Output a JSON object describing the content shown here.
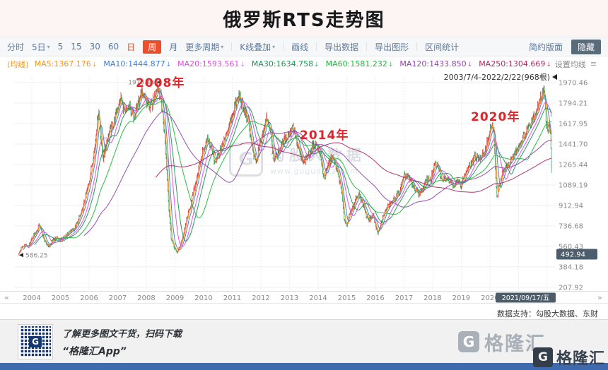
{
  "page": {
    "title": "俄罗斯RTS走势图"
  },
  "colors": {
    "up": "#dc3a3a",
    "down": "#2fa054",
    "annotation": "#e0262b",
    "selected_bg": "#e8502e",
    "badge_bg": "#4d5d6c",
    "bottom_bar": "#3f6aae"
  },
  "toolbar": {
    "caret": "▾",
    "items": [
      {
        "label": "分时"
      },
      {
        "label": "5日",
        "caret": true
      },
      {
        "label": "5"
      },
      {
        "label": "15"
      },
      {
        "label": "30"
      },
      {
        "label": "60"
      },
      {
        "label": "日",
        "accent": true
      },
      {
        "label": "周",
        "selected": true
      },
      {
        "label": "月"
      },
      {
        "label": "更多周期",
        "caret": true
      },
      {
        "sep": true
      },
      {
        "label": "K线叠加",
        "caret": true
      },
      {
        "sep": true
      },
      {
        "label": "画线"
      },
      {
        "sep": true
      },
      {
        "label": "导出数据"
      },
      {
        "sep": true
      },
      {
        "label": "导出图形"
      },
      {
        "sep": true
      },
      {
        "label": "区间统计"
      }
    ],
    "right": [
      {
        "label": "简约版面"
      },
      {
        "label": "隐藏",
        "dark": true
      }
    ]
  },
  "ma_bar": {
    "prefix": "(均线)",
    "prefix_color": "#f7941d",
    "arrow": "↓",
    "items": [
      {
        "label": "MA5:1367.176",
        "color": "#f7941d"
      },
      {
        "label": "MA10:1444.877",
        "color": "#3d7bd6"
      },
      {
        "label": "MA20:1593.561",
        "color": "#df4ddf"
      },
      {
        "label": "MA30:1634.758",
        "color": "#169a50"
      },
      {
        "label": "MA60:1581.232",
        "color": "#1fb93b"
      },
      {
        "label": "MA120:1433.850",
        "color": "#8f44ad"
      },
      {
        "label": "MA250:1304.669",
        "color": "#aa2d66"
      }
    ],
    "settings": "设置均线",
    "settings_icon": "≡"
  },
  "chart": {
    "range_label": "2003/7/4-2022/2/22(968根)",
    "y_axis": [
      "1970.46",
      "1794.21",
      "1617.95",
      "1441.70",
      "1265.44",
      "1089.19",
      "912.94",
      "736.68",
      "560.43",
      "384.18",
      "207.92"
    ],
    "price_badge": "492.94",
    "x_axis": [
      "2004",
      "2005",
      "2006",
      "2007",
      "2008",
      "2009",
      "2010",
      "2011",
      "2012",
      "2013",
      "2014",
      "2015",
      "2016",
      "2017",
      "2018",
      "2019",
      "2020"
    ],
    "date_badge": "2021/09/17/五",
    "nav_left": "«",
    "nav_right": "»",
    "annotations": [
      {
        "text": "2008年"
      },
      {
        "text": "2014年"
      },
      {
        "text": "2020年"
      }
    ],
    "markers": {
      "start": "586.25",
      "peak": "1970.46"
    },
    "watermark": {
      "logo": "G",
      "name": "勾股大数据",
      "url": "www.gogudata.com"
    },
    "support": "数据支持：勾股大数据、东财"
  },
  "chart_data": {
    "type": "candlestick",
    "title": "俄罗斯RTS走势图",
    "bars": 968,
    "x_range": [
      2003.53,
      2022.15
    ],
    "ylim": [
      177,
      2025
    ],
    "y_ticks": [
      1970.46,
      1794.21,
      1617.95,
      1441.7,
      1265.44,
      1089.19,
      912.94,
      736.68,
      560.43,
      384.18,
      207.92
    ],
    "ma_periods": [
      5,
      10,
      20,
      30,
      60,
      120,
      250
    ],
    "ma_colors": {
      "MA5": "#f7941d",
      "MA10": "#3d7bd6",
      "MA20": "#df4ddf",
      "MA30": "#169a50",
      "MA60": "#1fb93b",
      "MA120": "#8f44ad",
      "MA250": "#aa2d66"
    },
    "anchors": [
      [
        2003.53,
        490
      ],
      [
        2003.62,
        540
      ],
      [
        2003.75,
        575
      ],
      [
        2003.88,
        555
      ],
      [
        2004.0,
        625
      ],
      [
        2004.15,
        685
      ],
      [
        2004.27,
        755
      ],
      [
        2004.38,
        645
      ],
      [
        2004.5,
        580
      ],
      [
        2004.62,
        560
      ],
      [
        2004.75,
        615
      ],
      [
        2004.88,
        640
      ],
      [
        2005.0,
        608
      ],
      [
        2005.15,
        648
      ],
      [
        2005.3,
        680
      ],
      [
        2005.45,
        705
      ],
      [
        2005.6,
        765
      ],
      [
        2005.75,
        865
      ],
      [
        2005.9,
        1005
      ],
      [
        2006.05,
        1185
      ],
      [
        2006.2,
        1430
      ],
      [
        2006.33,
        1745
      ],
      [
        2006.42,
        1455
      ],
      [
        2006.5,
        1315
      ],
      [
        2006.62,
        1485
      ],
      [
        2006.75,
        1565
      ],
      [
        2006.88,
        1645
      ],
      [
        2007.0,
        1755
      ],
      [
        2007.12,
        1835
      ],
      [
        2007.25,
        1705
      ],
      [
        2007.4,
        1765
      ],
      [
        2007.55,
        1695
      ],
      [
        2007.7,
        1785
      ],
      [
        2007.85,
        1875
      ],
      [
        2008.0,
        1825
      ],
      [
        2008.12,
        1745
      ],
      [
        2008.25,
        1825
      ],
      [
        2008.38,
        1955
      ],
      [
        2008.5,
        1845
      ],
      [
        2008.6,
        1625
      ],
      [
        2008.7,
        1285
      ],
      [
        2008.78,
        905
      ],
      [
        2008.86,
        645
      ],
      [
        2008.95,
        565
      ],
      [
        2009.05,
        505
      ],
      [
        2009.15,
        545
      ],
      [
        2009.28,
        645
      ],
      [
        2009.4,
        785
      ],
      [
        2009.55,
        925
      ],
      [
        2009.7,
        1085
      ],
      [
        2009.85,
        1245
      ],
      [
        2010.0,
        1405
      ],
      [
        2010.12,
        1485
      ],
      [
        2010.25,
        1435
      ],
      [
        2010.38,
        1285
      ],
      [
        2010.5,
        1345
      ],
      [
        2010.65,
        1405
      ],
      [
        2010.8,
        1525
      ],
      [
        2010.95,
        1645
      ],
      [
        2011.1,
        1785
      ],
      [
        2011.25,
        1865
      ],
      [
        2011.35,
        1765
      ],
      [
        2011.5,
        1685
      ],
      [
        2011.62,
        1545
      ],
      [
        2011.75,
        1325
      ],
      [
        2011.85,
        1285
      ],
      [
        2011.95,
        1425
      ],
      [
        2012.08,
        1525
      ],
      [
        2012.2,
        1685
      ],
      [
        2012.33,
        1565
      ],
      [
        2012.45,
        1315
      ],
      [
        2012.58,
        1345
      ],
      [
        2012.7,
        1425
      ],
      [
        2012.85,
        1485
      ],
      [
        2013.0,
        1545
      ],
      [
        2013.12,
        1605
      ],
      [
        2013.25,
        1455
      ],
      [
        2013.4,
        1325
      ],
      [
        2013.52,
        1275
      ],
      [
        2013.65,
        1345
      ],
      [
        2013.8,
        1425
      ],
      [
        2013.95,
        1445
      ],
      [
        2014.08,
        1335
      ],
      [
        2014.2,
        1155
      ],
      [
        2014.35,
        1245
      ],
      [
        2014.48,
        1335
      ],
      [
        2014.6,
        1255
      ],
      [
        2014.72,
        1155
      ],
      [
        2014.82,
        1015
      ],
      [
        2014.92,
        785
      ],
      [
        2015.0,
        745
      ],
      [
        2015.1,
        835
      ],
      [
        2015.25,
        925
      ],
      [
        2015.4,
        1015
      ],
      [
        2015.55,
        935
      ],
      [
        2015.68,
        825
      ],
      [
        2015.8,
        785
      ],
      [
        2015.92,
        835
      ],
      [
        2016.02,
        715
      ],
      [
        2016.12,
        675
      ],
      [
        2016.25,
        805
      ],
      [
        2016.4,
        895
      ],
      [
        2016.55,
        935
      ],
      [
        2016.7,
        975
      ],
      [
        2016.85,
        1035
      ],
      [
        2017.0,
        1155
      ],
      [
        2017.12,
        1175
      ],
      [
        2017.25,
        1105
      ],
      [
        2017.4,
        1045
      ],
      [
        2017.52,
        1015
      ],
      [
        2017.65,
        1055
      ],
      [
        2017.8,
        1125
      ],
      [
        2017.95,
        1145
      ],
      [
        2018.08,
        1275
      ],
      [
        2018.2,
        1245
      ],
      [
        2018.3,
        1125
      ],
      [
        2018.45,
        1165
      ],
      [
        2018.58,
        1145
      ],
      [
        2018.7,
        1075
      ],
      [
        2018.85,
        1125
      ],
      [
        2019.0,
        1085
      ],
      [
        2019.12,
        1185
      ],
      [
        2019.25,
        1235
      ],
      [
        2019.4,
        1295
      ],
      [
        2019.55,
        1345
      ],
      [
        2019.7,
        1305
      ],
      [
        2019.85,
        1405
      ],
      [
        2019.98,
        1525
      ],
      [
        2020.06,
        1625
      ],
      [
        2020.13,
        1565
      ],
      [
        2020.19,
        1205
      ],
      [
        2020.24,
        985
      ],
      [
        2020.33,
        1085
      ],
      [
        2020.45,
        1185
      ],
      [
        2020.58,
        1245
      ],
      [
        2020.7,
        1285
      ],
      [
        2020.82,
        1345
      ],
      [
        2020.95,
        1405
      ],
      [
        2021.08,
        1465
      ],
      [
        2021.2,
        1505
      ],
      [
        2021.33,
        1585
      ],
      [
        2021.45,
        1645
      ],
      [
        2021.58,
        1705
      ],
      [
        2021.7,
        1785
      ],
      [
        2021.8,
        1865
      ],
      [
        2021.88,
        1935
      ],
      [
        2021.95,
        1685
      ],
      [
        2022.02,
        1525
      ],
      [
        2022.08,
        1615
      ],
      [
        2022.12,
        1485
      ],
      [
        2022.15,
        1235
      ]
    ]
  },
  "footer": {
    "qr_label": "G",
    "promo_line1": "了解更多图文干货，扫码下载",
    "promo_line2": "“格隆汇App”",
    "brand_logo": "G",
    "brand": "格隆汇",
    "corner_logo": "G",
    "corner_brand": "格隆汇"
  }
}
